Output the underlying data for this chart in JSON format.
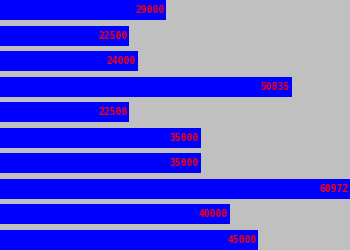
{
  "values": [
    29000,
    22500,
    24000,
    50835,
    22500,
    35000,
    35000,
    60972,
    40000,
    45000
  ],
  "bar_color": "#0000FF",
  "background_color": "#C0C0C0",
  "label_color": "#FF0000",
  "label_fontsize": 7,
  "figsize": [
    3.5,
    2.5
  ],
  "dpi": 100,
  "max_val": 60972
}
